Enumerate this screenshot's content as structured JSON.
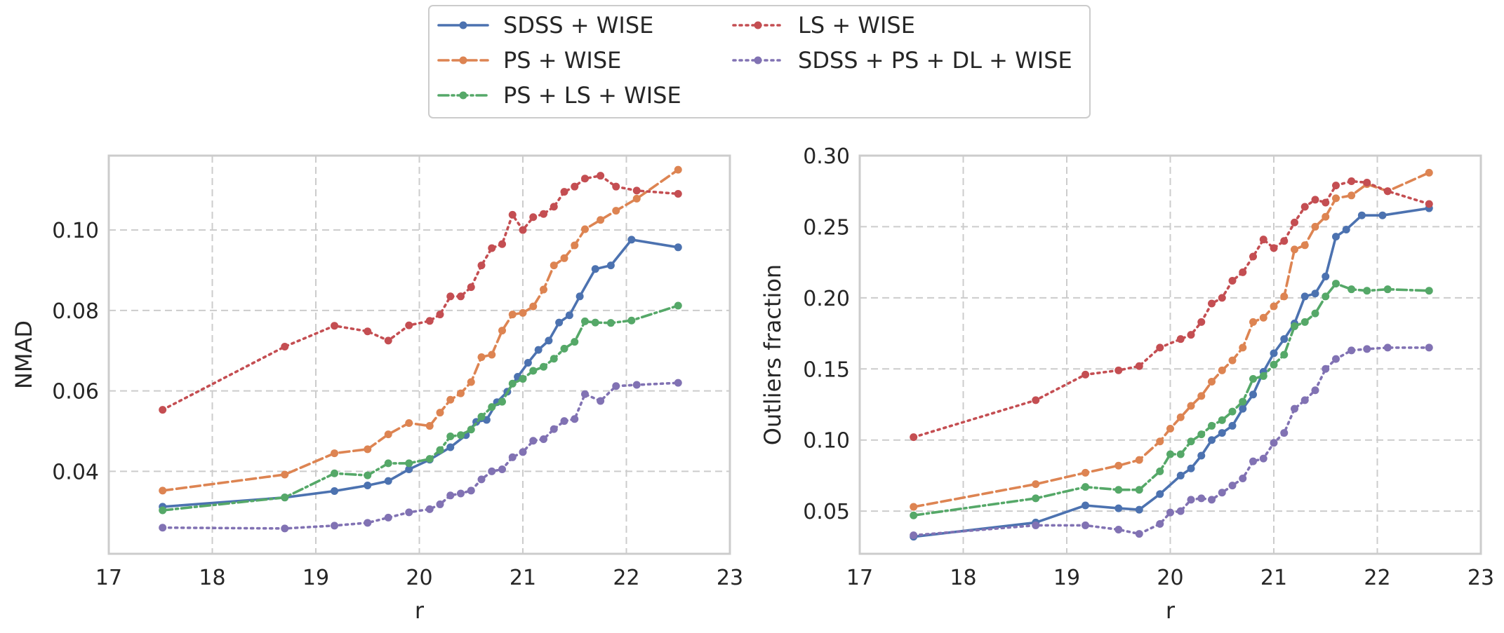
{
  "legend": {
    "placement": "top-center",
    "columns": 2
  },
  "chart_data": [
    {
      "type": "line",
      "xlabel": "r",
      "ylabel": "NMAD",
      "xlim": [
        17,
        23
      ],
      "ylim": [
        0.0195,
        0.1185
      ],
      "xticks": [
        "17",
        "18",
        "19",
        "20",
        "21",
        "22",
        "23"
      ],
      "xtick_values": [
        17,
        18,
        19,
        20,
        21,
        22,
        23
      ],
      "yticks": [
        "0.04",
        "0.06",
        "0.08",
        "0.10"
      ],
      "ytick_values": [
        0.04,
        0.06,
        0.08,
        0.1
      ],
      "grid": true,
      "series": [
        {
          "name": "SDSS + WISE",
          "color": "#4c72b0",
          "style": "solid",
          "x": [
            17.52,
            18.7,
            19.18,
            19.5,
            19.7,
            19.9,
            20.1,
            20.3,
            20.45,
            20.55,
            20.65,
            20.75,
            20.85,
            20.95,
            21.05,
            21.15,
            21.25,
            21.35,
            21.45,
            21.55,
            21.7,
            21.85,
            22.05,
            22.5
          ],
          "y": [
            0.0312,
            0.0335,
            0.0351,
            0.0365,
            0.0376,
            0.0405,
            0.0429,
            0.046,
            0.049,
            0.0523,
            0.0528,
            0.0572,
            0.0598,
            0.0635,
            0.067,
            0.0702,
            0.0725,
            0.077,
            0.0788,
            0.0835,
            0.0903,
            0.0912,
            0.0976,
            0.0957
          ]
        },
        {
          "name": "PS + WISE",
          "color": "#dd8452",
          "style": "dashed",
          "x": [
            17.52,
            18.7,
            19.18,
            19.5,
            19.7,
            19.9,
            20.1,
            20.2,
            20.3,
            20.4,
            20.5,
            20.6,
            20.7,
            20.8,
            20.9,
            21.0,
            21.1,
            21.2,
            21.3,
            21.4,
            21.5,
            21.6,
            21.75,
            21.9,
            22.1,
            22.5
          ],
          "y": [
            0.0352,
            0.0392,
            0.0445,
            0.0455,
            0.0492,
            0.052,
            0.0513,
            0.0546,
            0.0578,
            0.0594,
            0.0622,
            0.0684,
            0.069,
            0.075,
            0.079,
            0.0794,
            0.081,
            0.0852,
            0.0912,
            0.093,
            0.0962,
            0.1002,
            0.1025,
            0.1048,
            0.1078,
            0.115
          ]
        },
        {
          "name": "PS + LS + WISE",
          "color": "#55a868",
          "style": "dashdot",
          "x": [
            17.52,
            18.7,
            19.18,
            19.5,
            19.7,
            19.9,
            20.1,
            20.2,
            20.3,
            20.4,
            20.5,
            20.6,
            20.7,
            20.8,
            20.9,
            21.0,
            21.1,
            21.2,
            21.3,
            21.4,
            21.5,
            21.6,
            21.7,
            21.85,
            22.05,
            22.5
          ],
          "y": [
            0.0303,
            0.0335,
            0.0395,
            0.039,
            0.042,
            0.042,
            0.0431,
            0.0453,
            0.0487,
            0.049,
            0.0504,
            0.0536,
            0.056,
            0.0573,
            0.0618,
            0.063,
            0.065,
            0.066,
            0.068,
            0.0705,
            0.0722,
            0.0773,
            0.077,
            0.0769,
            0.0775,
            0.0812
          ]
        },
        {
          "name": "LS + WISE",
          "color": "#c44e52",
          "style": "dotted",
          "x": [
            17.52,
            18.7,
            19.18,
            19.5,
            19.7,
            19.9,
            20.1,
            20.2,
            20.3,
            20.4,
            20.5,
            20.6,
            20.7,
            20.8,
            20.9,
            21.0,
            21.1,
            21.2,
            21.3,
            21.4,
            21.5,
            21.6,
            21.75,
            21.9,
            22.1,
            22.5
          ],
          "y": [
            0.0553,
            0.071,
            0.0762,
            0.0748,
            0.0725,
            0.0763,
            0.0774,
            0.079,
            0.0835,
            0.0835,
            0.0858,
            0.0912,
            0.0955,
            0.0965,
            0.1038,
            0.1,
            0.1032,
            0.104,
            0.1058,
            0.1095,
            0.1108,
            0.1128,
            0.1135,
            0.1108,
            0.1098,
            0.109
          ]
        },
        {
          "name": "SDSS + PS + DL + WISE",
          "color": "#8172b3",
          "style": "dotted",
          "x": [
            17.52,
            18.7,
            19.18,
            19.5,
            19.7,
            19.9,
            20.1,
            20.2,
            20.3,
            20.4,
            20.5,
            20.6,
            20.7,
            20.8,
            20.9,
            21.0,
            21.1,
            21.2,
            21.3,
            21.4,
            21.5,
            21.6,
            21.75,
            21.9,
            22.1,
            22.5
          ],
          "y": [
            0.026,
            0.0258,
            0.0265,
            0.0272,
            0.0285,
            0.0298,
            0.0306,
            0.0318,
            0.034,
            0.0345,
            0.0352,
            0.038,
            0.04,
            0.0405,
            0.0435,
            0.0448,
            0.0476,
            0.048,
            0.0505,
            0.0525,
            0.053,
            0.0592,
            0.0575,
            0.0612,
            0.0615,
            0.062
          ]
        }
      ]
    },
    {
      "type": "line",
      "xlabel": "r",
      "ylabel": "Outliers fraction",
      "xlim": [
        17,
        23
      ],
      "ylim": [
        0.02,
        0.3
      ],
      "xticks": [
        "17",
        "18",
        "19",
        "20",
        "21",
        "22",
        "23"
      ],
      "xtick_values": [
        17,
        18,
        19,
        20,
        21,
        22,
        23
      ],
      "yticks": [
        "0.05",
        "0.10",
        "0.15",
        "0.20",
        "0.25",
        "0.30"
      ],
      "ytick_values": [
        0.05,
        0.1,
        0.15,
        0.2,
        0.25,
        0.3
      ],
      "grid": true,
      "series": [
        {
          "name": "SDSS + WISE",
          "color": "#4c72b0",
          "style": "solid",
          "x": [
            17.52,
            18.7,
            19.18,
            19.5,
            19.7,
            19.9,
            20.1,
            20.2,
            20.3,
            20.4,
            20.5,
            20.6,
            20.7,
            20.8,
            20.9,
            21.0,
            21.1,
            21.2,
            21.3,
            21.4,
            21.5,
            21.6,
            21.7,
            21.85,
            22.05,
            22.5
          ],
          "y": [
            0.032,
            0.042,
            0.054,
            0.052,
            0.051,
            0.062,
            0.075,
            0.08,
            0.089,
            0.1,
            0.105,
            0.11,
            0.122,
            0.132,
            0.148,
            0.161,
            0.171,
            0.182,
            0.201,
            0.203,
            0.215,
            0.243,
            0.248,
            0.258,
            0.258,
            0.263
          ]
        },
        {
          "name": "PS + WISE",
          "color": "#dd8452",
          "style": "dashed",
          "x": [
            17.52,
            18.7,
            19.18,
            19.5,
            19.7,
            19.9,
            20.0,
            20.1,
            20.2,
            20.3,
            20.4,
            20.5,
            20.6,
            20.7,
            20.8,
            20.9,
            21.0,
            21.1,
            21.2,
            21.3,
            21.4,
            21.5,
            21.6,
            21.75,
            21.9,
            22.1,
            22.5
          ],
          "y": [
            0.053,
            0.069,
            0.077,
            0.082,
            0.086,
            0.099,
            0.108,
            0.116,
            0.124,
            0.131,
            0.141,
            0.149,
            0.156,
            0.165,
            0.183,
            0.186,
            0.194,
            0.201,
            0.234,
            0.237,
            0.25,
            0.257,
            0.27,
            0.272,
            0.28,
            0.275,
            0.288
          ]
        },
        {
          "name": "PS + LS + WISE",
          "color": "#55a868",
          "style": "dashdot",
          "x": [
            17.52,
            18.7,
            19.18,
            19.5,
            19.7,
            19.9,
            20.0,
            20.1,
            20.2,
            20.3,
            20.4,
            20.5,
            20.6,
            20.7,
            20.8,
            20.9,
            21.0,
            21.1,
            21.2,
            21.3,
            21.4,
            21.5,
            21.6,
            21.75,
            21.9,
            22.1,
            22.5
          ],
          "y": [
            0.047,
            0.059,
            0.067,
            0.065,
            0.065,
            0.078,
            0.09,
            0.09,
            0.099,
            0.104,
            0.11,
            0.114,
            0.12,
            0.127,
            0.143,
            0.145,
            0.153,
            0.16,
            0.18,
            0.183,
            0.189,
            0.201,
            0.21,
            0.206,
            0.205,
            0.206,
            0.205
          ]
        },
        {
          "name": "LS + WISE",
          "color": "#c44e52",
          "style": "dotted",
          "x": [
            17.52,
            18.7,
            19.18,
            19.5,
            19.7,
            19.9,
            20.1,
            20.2,
            20.3,
            20.4,
            20.5,
            20.6,
            20.7,
            20.8,
            20.9,
            21.0,
            21.1,
            21.2,
            21.3,
            21.4,
            21.5,
            21.6,
            21.75,
            21.9,
            22.1,
            22.5
          ],
          "y": [
            0.102,
            0.128,
            0.146,
            0.149,
            0.152,
            0.165,
            0.171,
            0.174,
            0.183,
            0.196,
            0.2,
            0.212,
            0.218,
            0.229,
            0.241,
            0.235,
            0.24,
            0.253,
            0.264,
            0.269,
            0.267,
            0.279,
            0.282,
            0.281,
            0.275,
            0.266
          ]
        },
        {
          "name": "SDSS + PS + DL + WISE",
          "color": "#8172b3",
          "style": "dotted",
          "x": [
            17.52,
            18.7,
            19.18,
            19.5,
            19.7,
            19.9,
            20.0,
            20.1,
            20.2,
            20.3,
            20.4,
            20.5,
            20.6,
            20.7,
            20.8,
            20.9,
            21.0,
            21.1,
            21.2,
            21.3,
            21.4,
            21.5,
            21.6,
            21.75,
            21.9,
            22.1,
            22.5
          ],
          "y": [
            0.033,
            0.04,
            0.04,
            0.037,
            0.034,
            0.041,
            0.049,
            0.05,
            0.058,
            0.059,
            0.058,
            0.063,
            0.068,
            0.073,
            0.085,
            0.087,
            0.098,
            0.105,
            0.122,
            0.128,
            0.135,
            0.15,
            0.157,
            0.163,
            0.164,
            0.165,
            0.165
          ]
        }
      ]
    }
  ]
}
